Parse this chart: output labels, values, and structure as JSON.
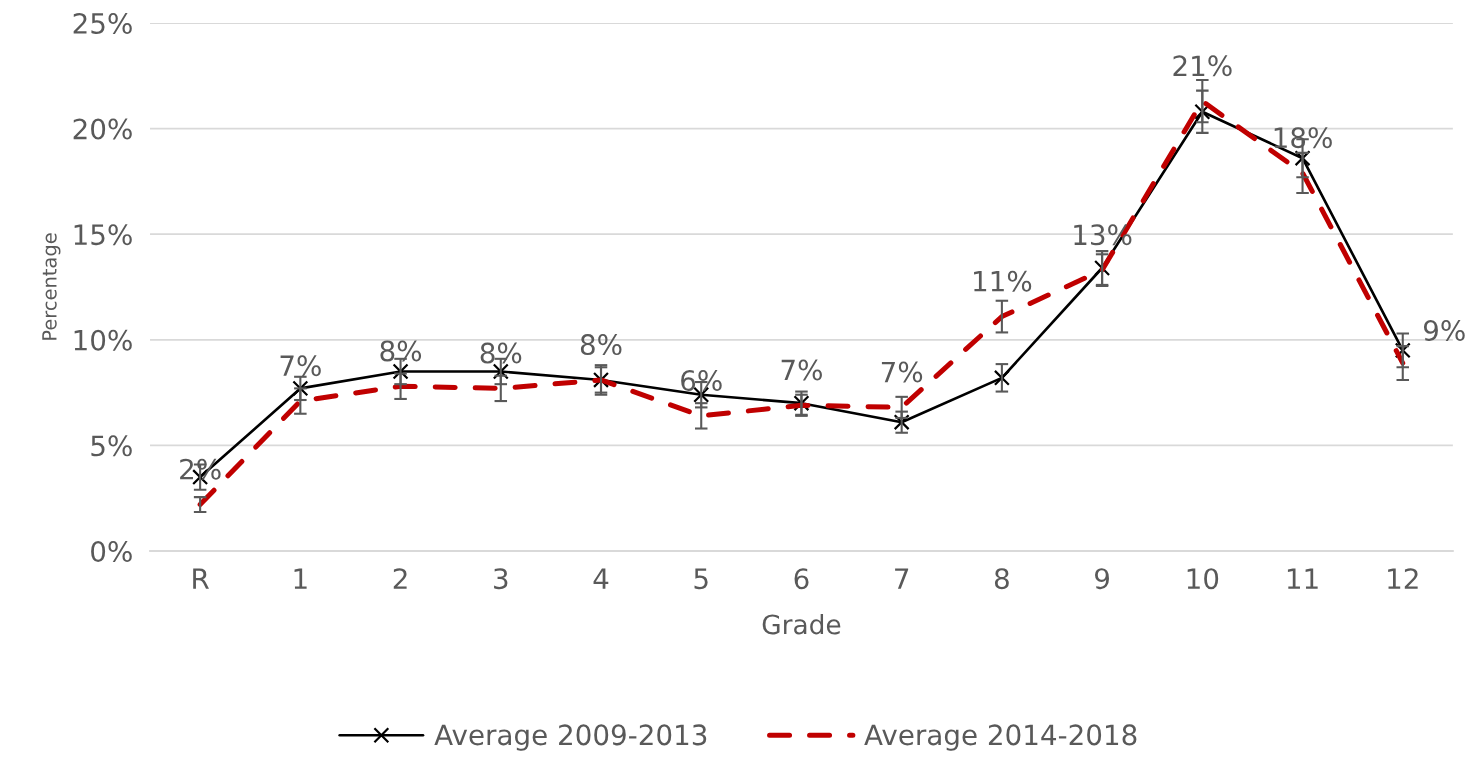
{
  "chart_data": {
    "type": "line",
    "xlabel": "Grade",
    "ylabel": "Percentage",
    "categories": [
      "R",
      "1",
      "2",
      "3",
      "4",
      "5",
      "6",
      "7",
      "8",
      "9",
      "10",
      "11",
      "12"
    ],
    "series": [
      {
        "name": "Average 2009-2013",
        "color": "#000000",
        "marker": "cross",
        "line_style": "solid",
        "values": [
          3.5,
          7.7,
          8.5,
          8.5,
          8.1,
          7.4,
          7.0,
          6.1,
          8.2,
          13.4,
          20.8,
          18.6,
          9.5
        ],
        "errors": [
          0.6,
          0.55,
          0.6,
          0.6,
          0.7,
          0.6,
          0.55,
          0.5,
          0.65,
          0.8,
          1.0,
          0.9,
          0.8
        ]
      },
      {
        "name": "Average 2014-2018",
        "color": "#c00000",
        "line_style": "dashed",
        "values": [
          2.2,
          7.1,
          7.8,
          7.7,
          8.1,
          6.4,
          6.9,
          6.8,
          11.1,
          13.3,
          21.3,
          17.9,
          8.9
        ],
        "errors": [
          0.35,
          0.6,
          0.6,
          0.6,
          0.6,
          0.6,
          0.5,
          0.5,
          0.75,
          0.75,
          1.0,
          0.95,
          0.8
        ],
        "value_labels": [
          "2%",
          "7%",
          "8%",
          "8%",
          "8%",
          "6%",
          "7%",
          "7%",
          "11%",
          "13%",
          "21%",
          "18%",
          "9%"
        ]
      }
    ],
    "ylim": [
      0,
      25
    ],
    "yticks": [
      {
        "value": 0,
        "label": "0%"
      },
      {
        "value": 5,
        "label": "5%"
      },
      {
        "value": 10,
        "label": "10%"
      },
      {
        "value": 15,
        "label": "15%"
      },
      {
        "value": 20,
        "label": "20%"
      },
      {
        "value": 25,
        "label": "25%"
      }
    ],
    "grid": "y",
    "legend": "bottom"
  }
}
